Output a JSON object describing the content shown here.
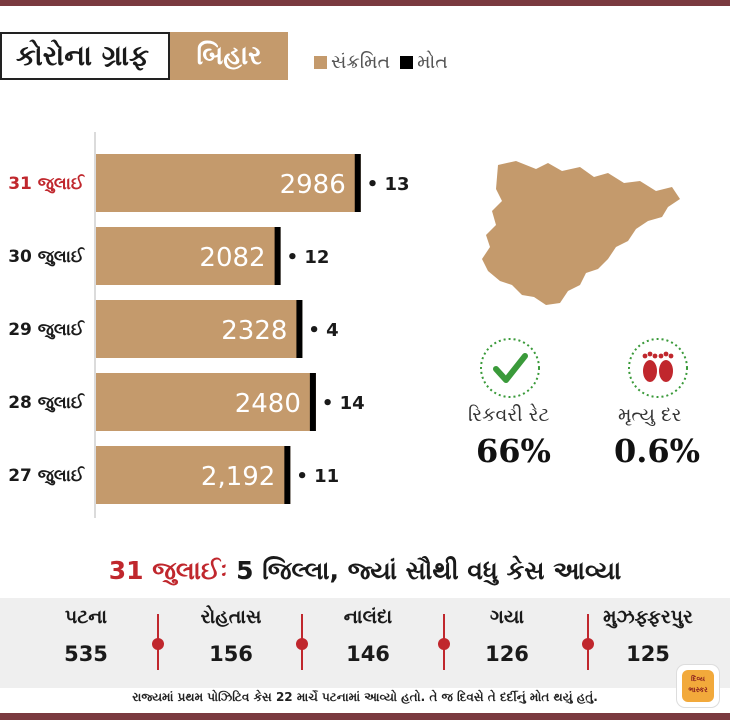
{
  "header": {
    "title": "કોરોના ગ્રાફ",
    "state": "બિહાર",
    "legend": [
      {
        "label": "સંક્રમિત",
        "color": "#c49a6c"
      },
      {
        "label": "મોત",
        "color": "#000000"
      }
    ]
  },
  "chart_data": {
    "type": "bar",
    "orientation": "horizontal",
    "title": "કોરોના ગ્રાફ",
    "categories": [
      "31 જુલાઈ",
      "30 જુલાઈ",
      "29 જુલાઈ",
      "28 જુલાઈ",
      "27 જુલાઈ"
    ],
    "highlight_category": "31 જુલાઈ",
    "series": [
      {
        "name": "સંક્રમિત",
        "color": "#c49a6c",
        "values": [
          2986,
          2082,
          2328,
          2480,
          2192
        ],
        "labels": [
          "2986",
          "2082",
          "2328",
          "2480",
          "2,192"
        ]
      },
      {
        "name": "મોત",
        "color": "#000000",
        "values": [
          13,
          12,
          4,
          14,
          11
        ]
      }
    ],
    "death_prefix": "•",
    "xlim": [
      0,
      3000
    ],
    "grid": false
  },
  "stats": {
    "recovery": {
      "label": "રિકવરી રેટ",
      "value": "66%",
      "icon": "checkmark-icon"
    },
    "mortality": {
      "label": "મૃત્યુ દર",
      "value": "0.6%",
      "icon": "footprints-icon"
    }
  },
  "districts": {
    "title_date": "31 જુલાઈઃ",
    "title_text": "5 જિલ્લા, જ્યાં સૌથી વધુ કેસ આવ્યા",
    "items": [
      {
        "name": "પટના",
        "value": "535"
      },
      {
        "name": "રોહતાસ",
        "value": "156"
      },
      {
        "name": "નાલંદા",
        "value": "146"
      },
      {
        "name": "ગયા",
        "value": "126"
      },
      {
        "name": "મુઝફ્ફરપુર",
        "value": "125"
      }
    ]
  },
  "footnote": "રાજ્યમાં પ્રથમ પોઝિટિવ કેસ 22 માર્ચે પટનામાં આવ્યો હતો. તે જ દિવસે તે દર્દીનું મોત થયું હતું.",
  "logo": {
    "text": "દિવ્ય ભાસ્કર"
  },
  "colors": {
    "accent": "#c0272d",
    "bar": "#c49a6c",
    "rule": "#7a3a3f"
  }
}
